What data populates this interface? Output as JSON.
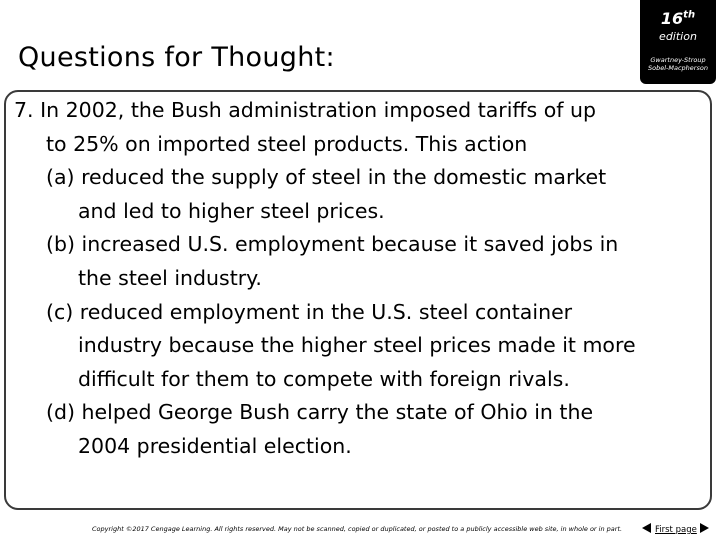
{
  "slide": {
    "title": "Questions for Thought:"
  },
  "badge": {
    "edition_number": "16",
    "edition_suffix": "th",
    "edition_word": "edition",
    "authors_line1": "Gwartney-Stroup",
    "authors_line2": "Sobel-Macpherson"
  },
  "question": {
    "lines": [
      "7. In 2002, the Bush administration imposed tariffs of up",
      "to 25% on imported steel products. This action",
      "(a) reduced the supply of steel in the domestic market",
      "and led to higher steel prices.",
      "(b) increased U.S. employment because it saved jobs in",
      "the steel industry.",
      "(c) reduced employment in the U.S. steel container",
      "industry because the higher steel prices made it more",
      "difficult for them to compete with foreign rivals.",
      "(d) helped George Bush carry the state of Ohio in the",
      "2004 presidential election."
    ]
  },
  "footer": {
    "copyright": "Copyright ©2017 Cengage Learning. All rights reserved. May not be scanned, copied or duplicated, or posted to a publicly accessible web site, in whole or in part.",
    "first_page_link": "First page"
  }
}
